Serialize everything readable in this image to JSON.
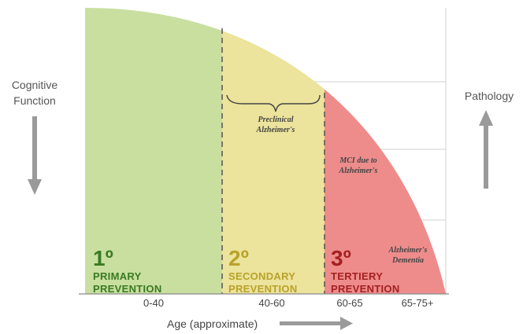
{
  "cognitive_label_line1": "Cognitive",
  "cognitive_label_line2": "Function",
  "pathology_label": "Pathology",
  "x_axis_label": "Age (approximate)",
  "age_ticks": [
    "0-40",
    "40-60",
    "60-65",
    "65-75+"
  ],
  "zones": [
    {
      "number": "1º",
      "line1": "PRIMARY",
      "line2": "PREVENTION",
      "color": "#c8dfa0",
      "text_color": "#3a7a22"
    },
    {
      "number": "2º",
      "line1": "SECONDARY",
      "line2": "PREVENTION",
      "color": "#ece39c",
      "text_color": "#b8a22a"
    },
    {
      "number": "3º",
      "line1": "TERTIERY",
      "line2": "PREVENTION",
      "color": "#ee8c8c",
      "text_color": "#a42020"
    }
  ],
  "annotations": {
    "preclinical_line1": "Preclinical",
    "preclinical_line2": "Alzheimer's",
    "mci_line1": "MCI due to",
    "mci_line2": "Alzheimer's",
    "dementia_line1": "Alzheimer's",
    "dementia_line2": "Dementia"
  }
}
